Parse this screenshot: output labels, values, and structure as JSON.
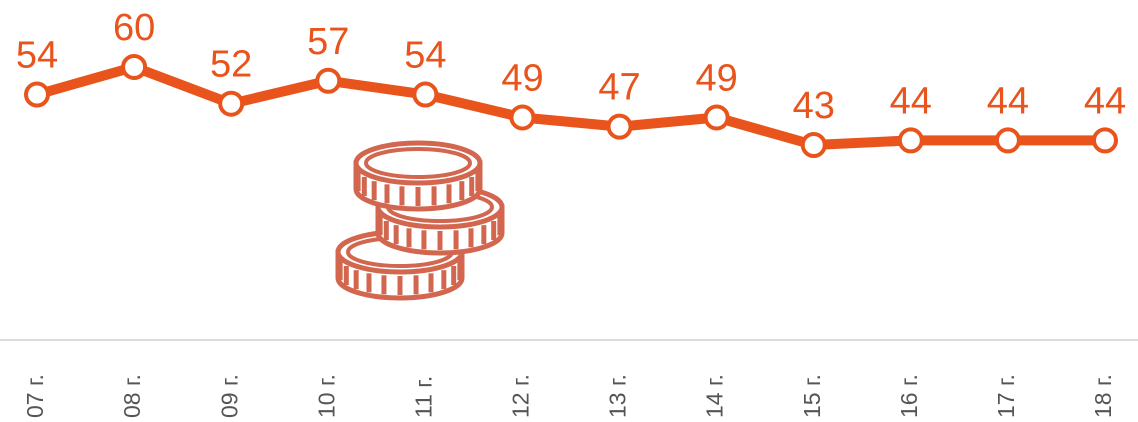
{
  "chart_data": {
    "type": "line",
    "categories": [
      "07 г.",
      "08 г.",
      "09 г.",
      "10 г.",
      "11 г.",
      "12 г.",
      "13 г.",
      "14 г.",
      "15 г.",
      "16 г.",
      "17 г.",
      "18 г."
    ],
    "values": [
      54,
      60,
      52,
      57,
      54,
      49,
      47,
      49,
      43,
      44,
      44,
      44
    ],
    "color": "#e8541c"
  }
}
